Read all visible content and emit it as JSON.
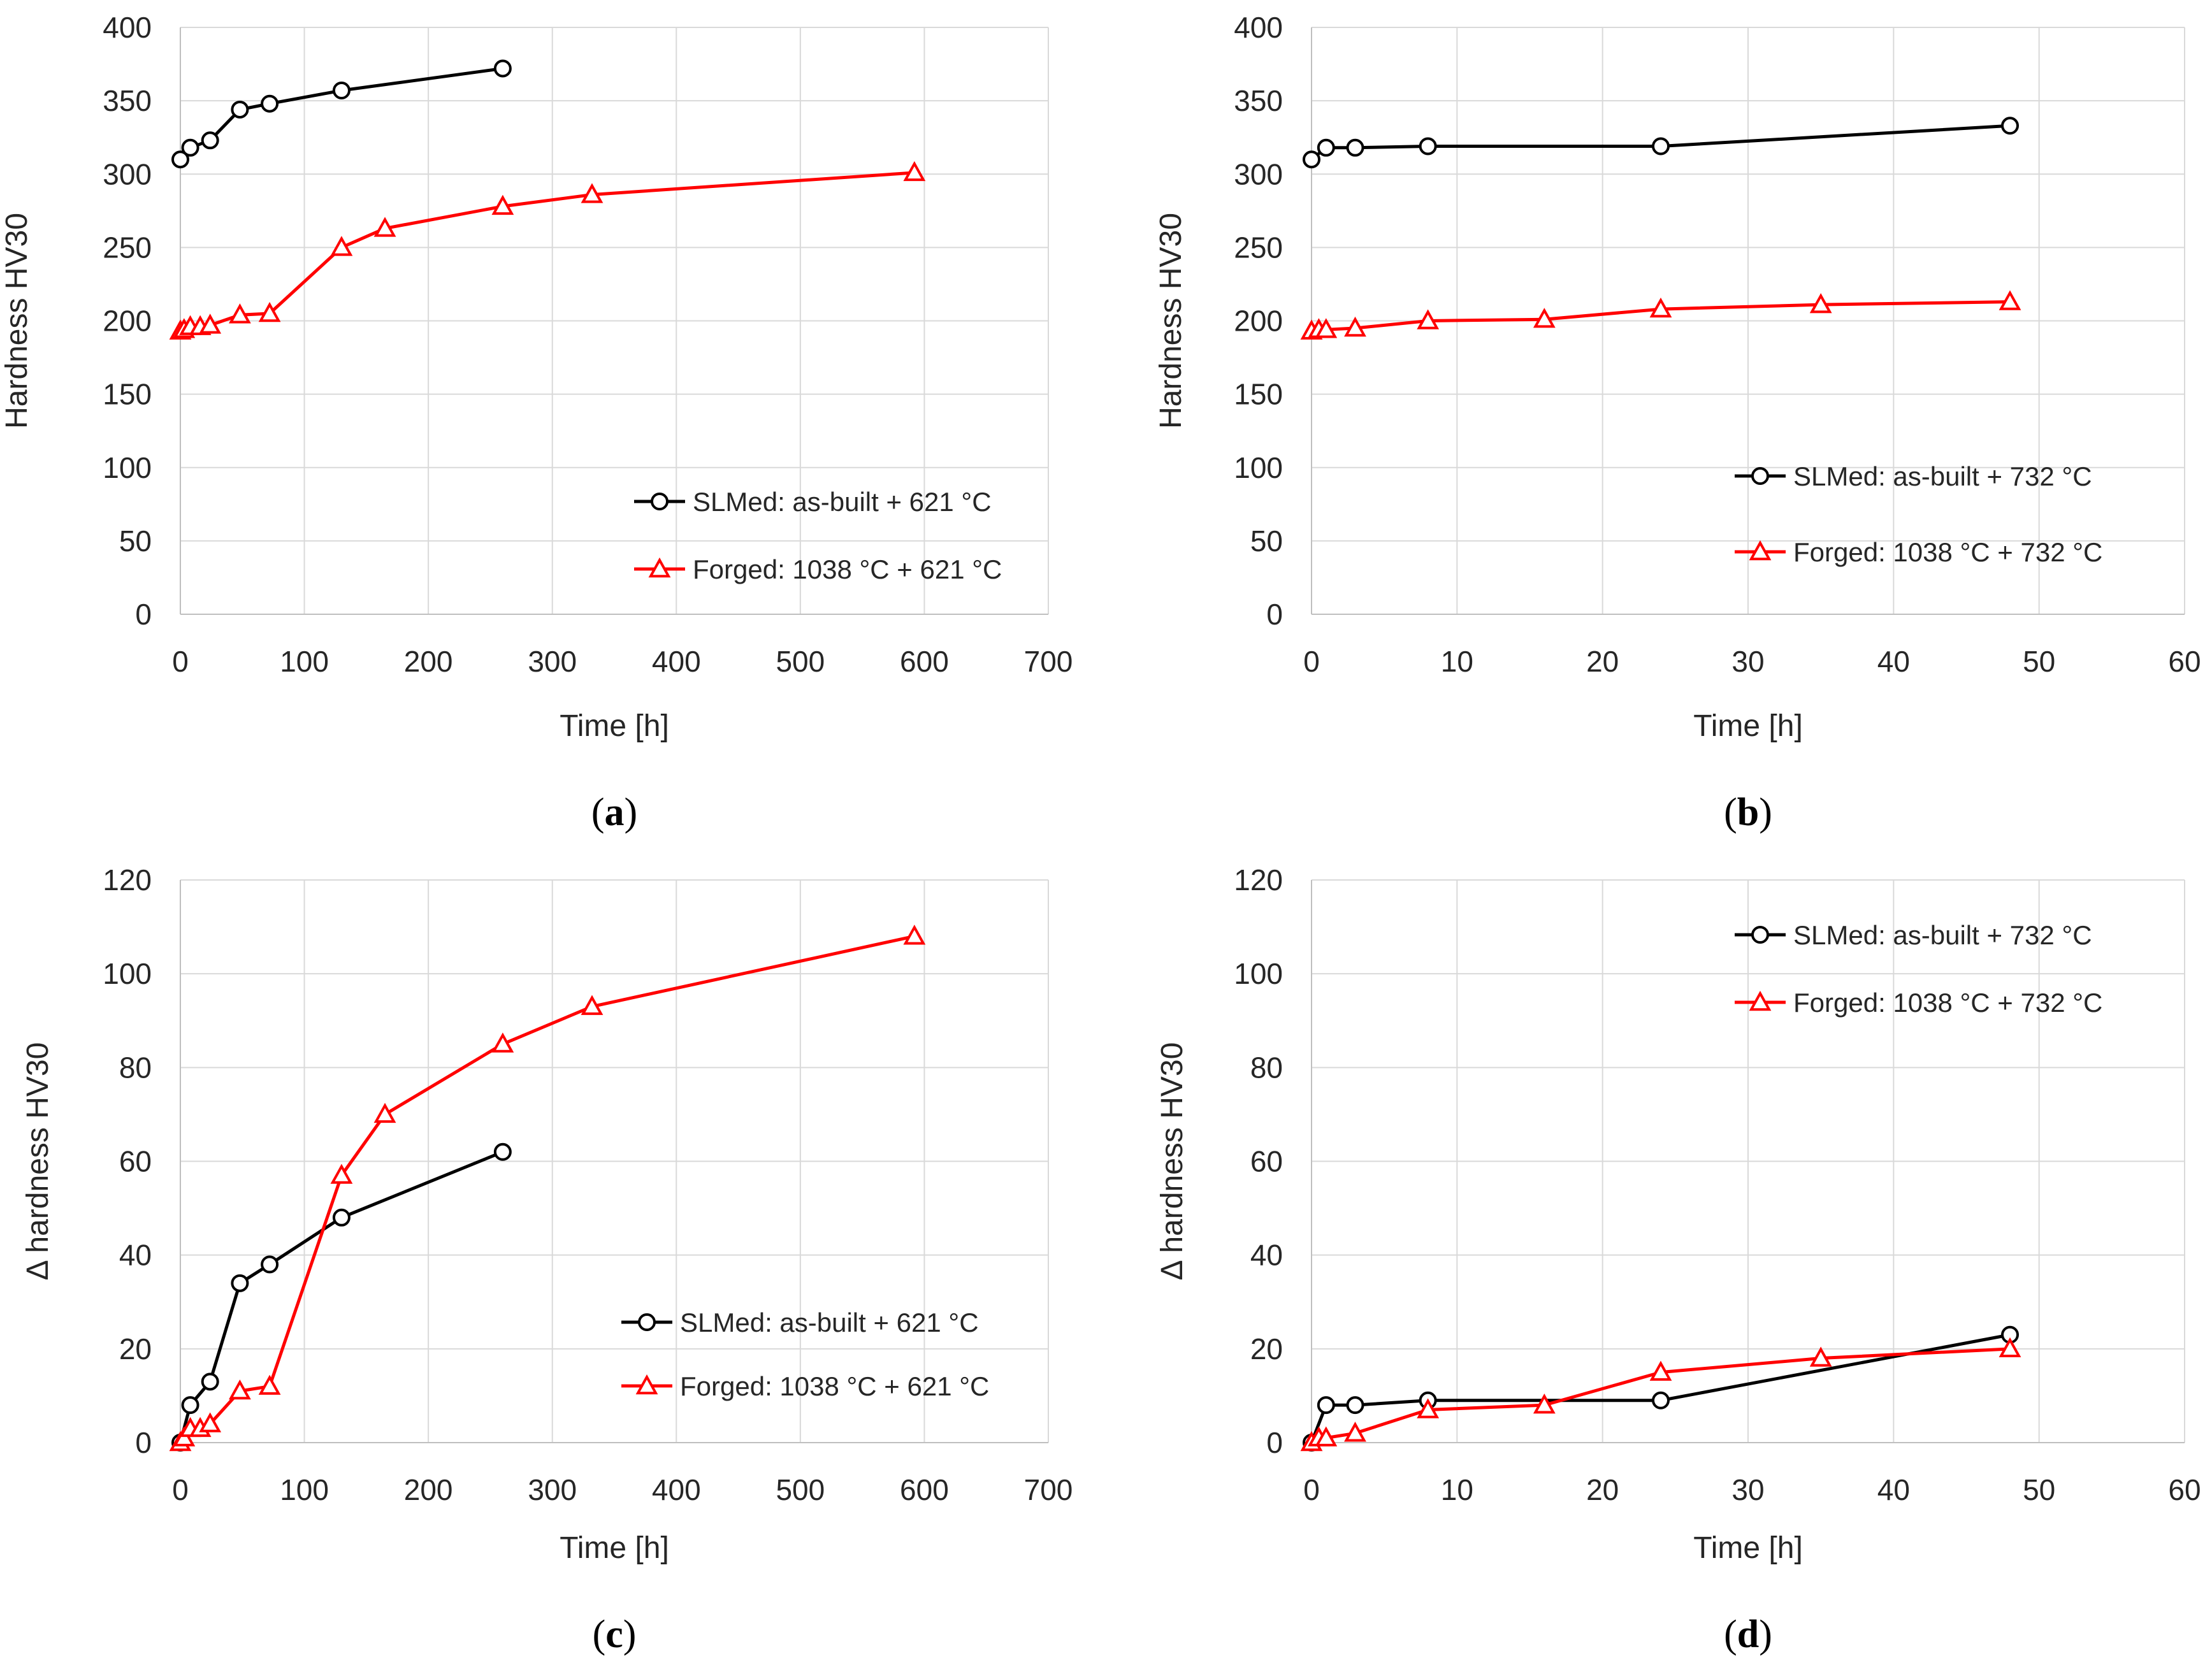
{
  "figure": {
    "series_colors": {
      "slm": "#000000",
      "forged": "#ff0000"
    }
  },
  "chart_data": [
    {
      "id": "a",
      "type": "line",
      "caption_letter": "a",
      "xlabel": "Time [h]",
      "ylabel": "Hardness HV30",
      "xlim": [
        0,
        700
      ],
      "ylim": [
        0,
        400
      ],
      "xticks": [
        0,
        100,
        200,
        300,
        400,
        500,
        600,
        700
      ],
      "yticks": [
        0,
        50,
        100,
        150,
        200,
        250,
        300,
        350,
        400
      ],
      "legend_position": "lower-right",
      "series": [
        {
          "name": "SLMed: as-built + 621 °C",
          "marker": "circle",
          "color": "#000000",
          "x": [
            0,
            8,
            24,
            48,
            72,
            130,
            260
          ],
          "y": [
            310,
            318,
            323,
            344,
            348,
            357,
            372
          ]
        },
        {
          "name": "Forged: 1038 °C + 621 °C",
          "marker": "triangle",
          "color": "#ff0000",
          "x": [
            0,
            3,
            8,
            16,
            24,
            48,
            72,
            130,
            165,
            260,
            332,
            592
          ],
          "y": [
            193,
            194,
            196,
            196,
            197,
            204,
            205,
            250,
            263,
            278,
            286,
            301
          ]
        }
      ]
    },
    {
      "id": "b",
      "type": "line",
      "caption_letter": "b",
      "xlabel": "Time [h]",
      "ylabel": "Hardness HV30",
      "xlim": [
        0,
        60
      ],
      "ylim": [
        0,
        400
      ],
      "xticks": [
        0,
        10,
        20,
        30,
        40,
        50,
        60
      ],
      "yticks": [
        0,
        50,
        100,
        150,
        200,
        250,
        300,
        350,
        400
      ],
      "legend_position": "lower-right",
      "series": [
        {
          "name": "SLMed: as-built + 732 °C",
          "marker": "circle",
          "color": "#000000",
          "x": [
            0,
            1,
            3,
            8,
            24,
            48
          ],
          "y": [
            310,
            318,
            318,
            319,
            319,
            333
          ]
        },
        {
          "name": "Forged: 1038 °C + 732 °C",
          "marker": "triangle",
          "color": "#ff0000",
          "x": [
            0,
            0.5,
            1,
            3,
            8,
            16,
            24,
            35,
            48
          ],
          "y": [
            193,
            194,
            194,
            195,
            200,
            201,
            208,
            211,
            213
          ]
        }
      ]
    },
    {
      "id": "c",
      "type": "line",
      "caption_letter": "c",
      "xlabel": "Time [h]",
      "ylabel": "Δ hardness HV30",
      "xlim": [
        0,
        700
      ],
      "ylim": [
        0,
        120
      ],
      "xticks": [
        0,
        100,
        200,
        300,
        400,
        500,
        600,
        700
      ],
      "yticks": [
        0,
        20,
        40,
        60,
        80,
        100,
        120
      ],
      "legend_position": "lower-right",
      "series": [
        {
          "name": "SLMed: as-built + 621 °C",
          "marker": "circle",
          "color": "#000000",
          "x": [
            0,
            8,
            24,
            48,
            72,
            130,
            260
          ],
          "y": [
            0,
            8,
            13,
            34,
            38,
            48,
            62
          ]
        },
        {
          "name": "Forged: 1038 °C + 621 °C",
          "marker": "triangle",
          "color": "#ff0000",
          "x": [
            0,
            3,
            8,
            16,
            24,
            48,
            72,
            130,
            165,
            260,
            332,
            592
          ],
          "y": [
            0,
            1,
            3,
            3,
            4,
            11,
            12,
            57,
            70,
            85,
            93,
            108
          ]
        }
      ]
    },
    {
      "id": "d",
      "type": "line",
      "caption_letter": "d",
      "xlabel": "Time [h]",
      "ylabel": "Δ hardness HV30",
      "xlim": [
        0,
        60
      ],
      "ylim": [
        0,
        120
      ],
      "xticks": [
        0,
        10,
        20,
        30,
        40,
        50,
        60
      ],
      "yticks": [
        0,
        20,
        40,
        60,
        80,
        100,
        120
      ],
      "legend_position": "top-right",
      "series": [
        {
          "name": "SLMed: as-built + 732 °C",
          "marker": "circle",
          "color": "#000000",
          "x": [
            0,
            1,
            3,
            8,
            24,
            48
          ],
          "y": [
            0,
            8,
            8,
            9,
            9,
            23
          ]
        },
        {
          "name": "Forged: 1038 °C + 732 °C",
          "marker": "triangle",
          "color": "#ff0000",
          "x": [
            0,
            0.5,
            1,
            3,
            8,
            16,
            24,
            35,
            48
          ],
          "y": [
            0,
            1,
            1,
            2,
            7,
            8,
            15,
            18,
            20
          ]
        }
      ]
    }
  ]
}
